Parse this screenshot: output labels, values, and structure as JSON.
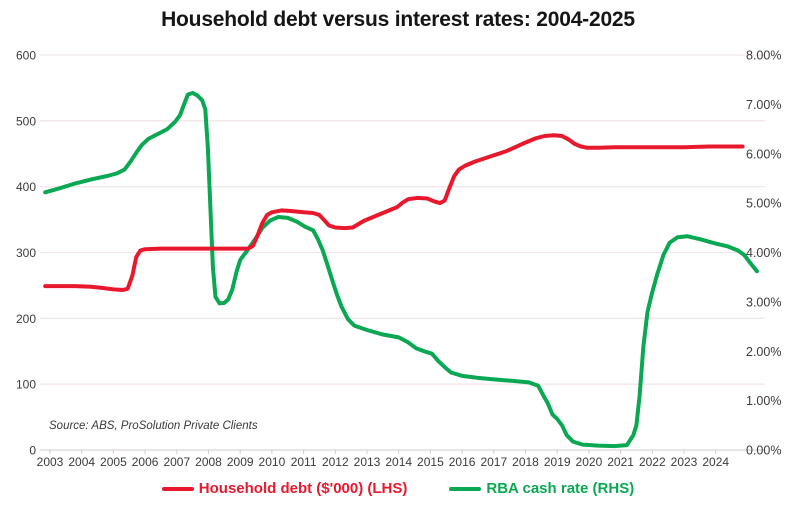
{
  "title": "Household debt versus interest rates: 2004-2025",
  "source_note": "Source: ABS, ProSolution Private Clients",
  "colors": {
    "household_debt": "#e8192d",
    "rba_cash_rate": "#0aa852",
    "gridline": "#f2e6e6",
    "axis_line": "#ddd2d2",
    "tick": "#d6c9c9",
    "text": "#3c3c3c"
  },
  "legend": {
    "items": [
      {
        "label": "Household debt ($'000) (LHS)",
        "color": "#e8192d"
      },
      {
        "label": "RBA cash rate (RHS)",
        "color": "#0aa852"
      }
    ]
  },
  "chart_data": {
    "type": "line",
    "title": "Household debt versus interest rates: 2004-2025",
    "grid": true,
    "legend_position": "bottom",
    "x_axis": {
      "tick_years": [
        2003,
        2004,
        2005,
        2006,
        2007,
        2008,
        2009,
        2010,
        2011,
        2012,
        2013,
        2014,
        2015,
        2016,
        2017,
        2018,
        2019,
        2020,
        2021,
        2022,
        2023,
        2024
      ],
      "range": [
        2002.85,
        2025.55
      ]
    },
    "left_axis": {
      "ticks": [
        0,
        100,
        200,
        300,
        400,
        500,
        600
      ],
      "range": [
        0,
        600
      ],
      "series": "Household debt ($'000)"
    },
    "right_axis": {
      "tick_labels": [
        "0.00%",
        "1.00%",
        "2.00%",
        "3.00%",
        "4.00%",
        "5.00%",
        "6.00%",
        "7.00%",
        "8.00%"
      ],
      "ticks_percent": [
        0,
        1,
        2,
        3,
        4,
        5,
        6,
        7,
        8
      ],
      "range_percent": [
        0,
        8
      ],
      "series": "RBA cash rate"
    },
    "series": [
      {
        "name": "Household debt ($'000) (LHS)",
        "axis": "left",
        "color": "#e8192d",
        "points": [
          [
            2002.85,
            249
          ],
          [
            2003.3,
            249
          ],
          [
            2003.8,
            249
          ],
          [
            2004.3,
            248
          ],
          [
            2004.7,
            246
          ],
          [
            2005.0,
            244
          ],
          [
            2005.3,
            243
          ],
          [
            2005.45,
            245
          ],
          [
            2005.6,
            265
          ],
          [
            2005.72,
            293
          ],
          [
            2005.85,
            303
          ],
          [
            2006.0,
            305
          ],
          [
            2006.5,
            306
          ],
          [
            2007.0,
            306
          ],
          [
            2007.5,
            306
          ],
          [
            2008.0,
            306
          ],
          [
            2008.5,
            306
          ],
          [
            2009.0,
            306
          ],
          [
            2009.25,
            306
          ],
          [
            2009.4,
            310
          ],
          [
            2009.55,
            326
          ],
          [
            2009.7,
            345
          ],
          [
            2009.85,
            357
          ],
          [
            2010.0,
            361
          ],
          [
            2010.3,
            364
          ],
          [
            2010.6,
            363
          ],
          [
            2011.0,
            361
          ],
          [
            2011.3,
            360
          ],
          [
            2011.5,
            357
          ],
          [
            2011.65,
            349
          ],
          [
            2011.8,
            341
          ],
          [
            2012.0,
            338
          ],
          [
            2012.3,
            337
          ],
          [
            2012.55,
            338
          ],
          [
            2012.9,
            348
          ],
          [
            2013.3,
            356
          ],
          [
            2013.7,
            364
          ],
          [
            2013.95,
            369
          ],
          [
            2014.1,
            375
          ],
          [
            2014.3,
            381
          ],
          [
            2014.6,
            383
          ],
          [
            2014.9,
            382
          ],
          [
            2015.1,
            378
          ],
          [
            2015.3,
            375
          ],
          [
            2015.45,
            379
          ],
          [
            2015.6,
            398
          ],
          [
            2015.75,
            416
          ],
          [
            2015.9,
            426
          ],
          [
            2016.1,
            432
          ],
          [
            2016.4,
            438
          ],
          [
            2016.9,
            446
          ],
          [
            2017.4,
            454
          ],
          [
            2017.9,
            465
          ],
          [
            2018.3,
            473
          ],
          [
            2018.6,
            477
          ],
          [
            2018.9,
            478
          ],
          [
            2019.15,
            477
          ],
          [
            2019.35,
            472
          ],
          [
            2019.55,
            465
          ],
          [
            2019.75,
            461
          ],
          [
            2019.95,
            459
          ],
          [
            2020.3,
            459
          ],
          [
            2020.8,
            460
          ],
          [
            2021.5,
            460
          ],
          [
            2022.2,
            460
          ],
          [
            2023.0,
            460
          ],
          [
            2023.8,
            461
          ],
          [
            2024.85,
            461
          ]
        ]
      },
      {
        "name": "RBA cash rate (RHS)",
        "axis": "right",
        "color": "#0aa852",
        "points": [
          [
            2002.85,
            5.22
          ],
          [
            2003.3,
            5.3
          ],
          [
            2003.8,
            5.4
          ],
          [
            2004.3,
            5.48
          ],
          [
            2004.8,
            5.55
          ],
          [
            2005.1,
            5.6
          ],
          [
            2005.35,
            5.68
          ],
          [
            2005.55,
            5.85
          ],
          [
            2005.75,
            6.05
          ],
          [
            2005.9,
            6.18
          ],
          [
            2006.1,
            6.3
          ],
          [
            2006.4,
            6.4
          ],
          [
            2006.7,
            6.5
          ],
          [
            2006.95,
            6.65
          ],
          [
            2007.1,
            6.78
          ],
          [
            2007.2,
            6.95
          ],
          [
            2007.35,
            7.2
          ],
          [
            2007.5,
            7.23
          ],
          [
            2007.65,
            7.18
          ],
          [
            2007.8,
            7.08
          ],
          [
            2007.9,
            6.9
          ],
          [
            2007.98,
            6.1
          ],
          [
            2008.06,
            4.9
          ],
          [
            2008.14,
            3.7
          ],
          [
            2008.22,
            3.1
          ],
          [
            2008.35,
            2.97
          ],
          [
            2008.5,
            2.98
          ],
          [
            2008.62,
            3.05
          ],
          [
            2008.75,
            3.25
          ],
          [
            2008.88,
            3.6
          ],
          [
            2009.0,
            3.85
          ],
          [
            2009.2,
            4.02
          ],
          [
            2009.45,
            4.25
          ],
          [
            2009.7,
            4.5
          ],
          [
            2009.95,
            4.65
          ],
          [
            2010.2,
            4.72
          ],
          [
            2010.5,
            4.7
          ],
          [
            2010.8,
            4.62
          ],
          [
            2011.05,
            4.52
          ],
          [
            2011.3,
            4.45
          ],
          [
            2011.45,
            4.27
          ],
          [
            2011.6,
            4.05
          ],
          [
            2011.75,
            3.75
          ],
          [
            2011.9,
            3.45
          ],
          [
            2012.05,
            3.15
          ],
          [
            2012.2,
            2.9
          ],
          [
            2012.4,
            2.65
          ],
          [
            2012.6,
            2.52
          ],
          [
            2013.0,
            2.43
          ],
          [
            2013.5,
            2.34
          ],
          [
            2014.0,
            2.28
          ],
          [
            2014.3,
            2.18
          ],
          [
            2014.55,
            2.06
          ],
          [
            2014.8,
            2.0
          ],
          [
            2015.05,
            1.95
          ],
          [
            2015.25,
            1.8
          ],
          [
            2015.45,
            1.68
          ],
          [
            2015.65,
            1.57
          ],
          [
            2016.0,
            1.5
          ],
          [
            2016.5,
            1.46
          ],
          [
            2017.0,
            1.43
          ],
          [
            2017.6,
            1.4
          ],
          [
            2018.1,
            1.37
          ],
          [
            2018.4,
            1.3
          ],
          [
            2018.55,
            1.12
          ],
          [
            2018.7,
            0.95
          ],
          [
            2018.85,
            0.72
          ],
          [
            2019.0,
            0.63
          ],
          [
            2019.15,
            0.5
          ],
          [
            2019.3,
            0.3
          ],
          [
            2019.5,
            0.17
          ],
          [
            2019.8,
            0.11
          ],
          [
            2020.3,
            0.09
          ],
          [
            2020.8,
            0.08
          ],
          [
            2021.2,
            0.1
          ],
          [
            2021.4,
            0.3
          ],
          [
            2021.5,
            0.5
          ],
          [
            2021.6,
            1.1
          ],
          [
            2021.72,
            2.1
          ],
          [
            2021.85,
            2.8
          ],
          [
            2022.0,
            3.2
          ],
          [
            2022.15,
            3.55
          ],
          [
            2022.35,
            3.95
          ],
          [
            2022.55,
            4.2
          ],
          [
            2022.8,
            4.31
          ],
          [
            2023.1,
            4.33
          ],
          [
            2023.5,
            4.27
          ],
          [
            2024.0,
            4.18
          ],
          [
            2024.4,
            4.12
          ],
          [
            2024.7,
            4.04
          ],
          [
            2024.9,
            3.95
          ],
          [
            2025.1,
            3.78
          ],
          [
            2025.3,
            3.62
          ]
        ]
      }
    ]
  }
}
